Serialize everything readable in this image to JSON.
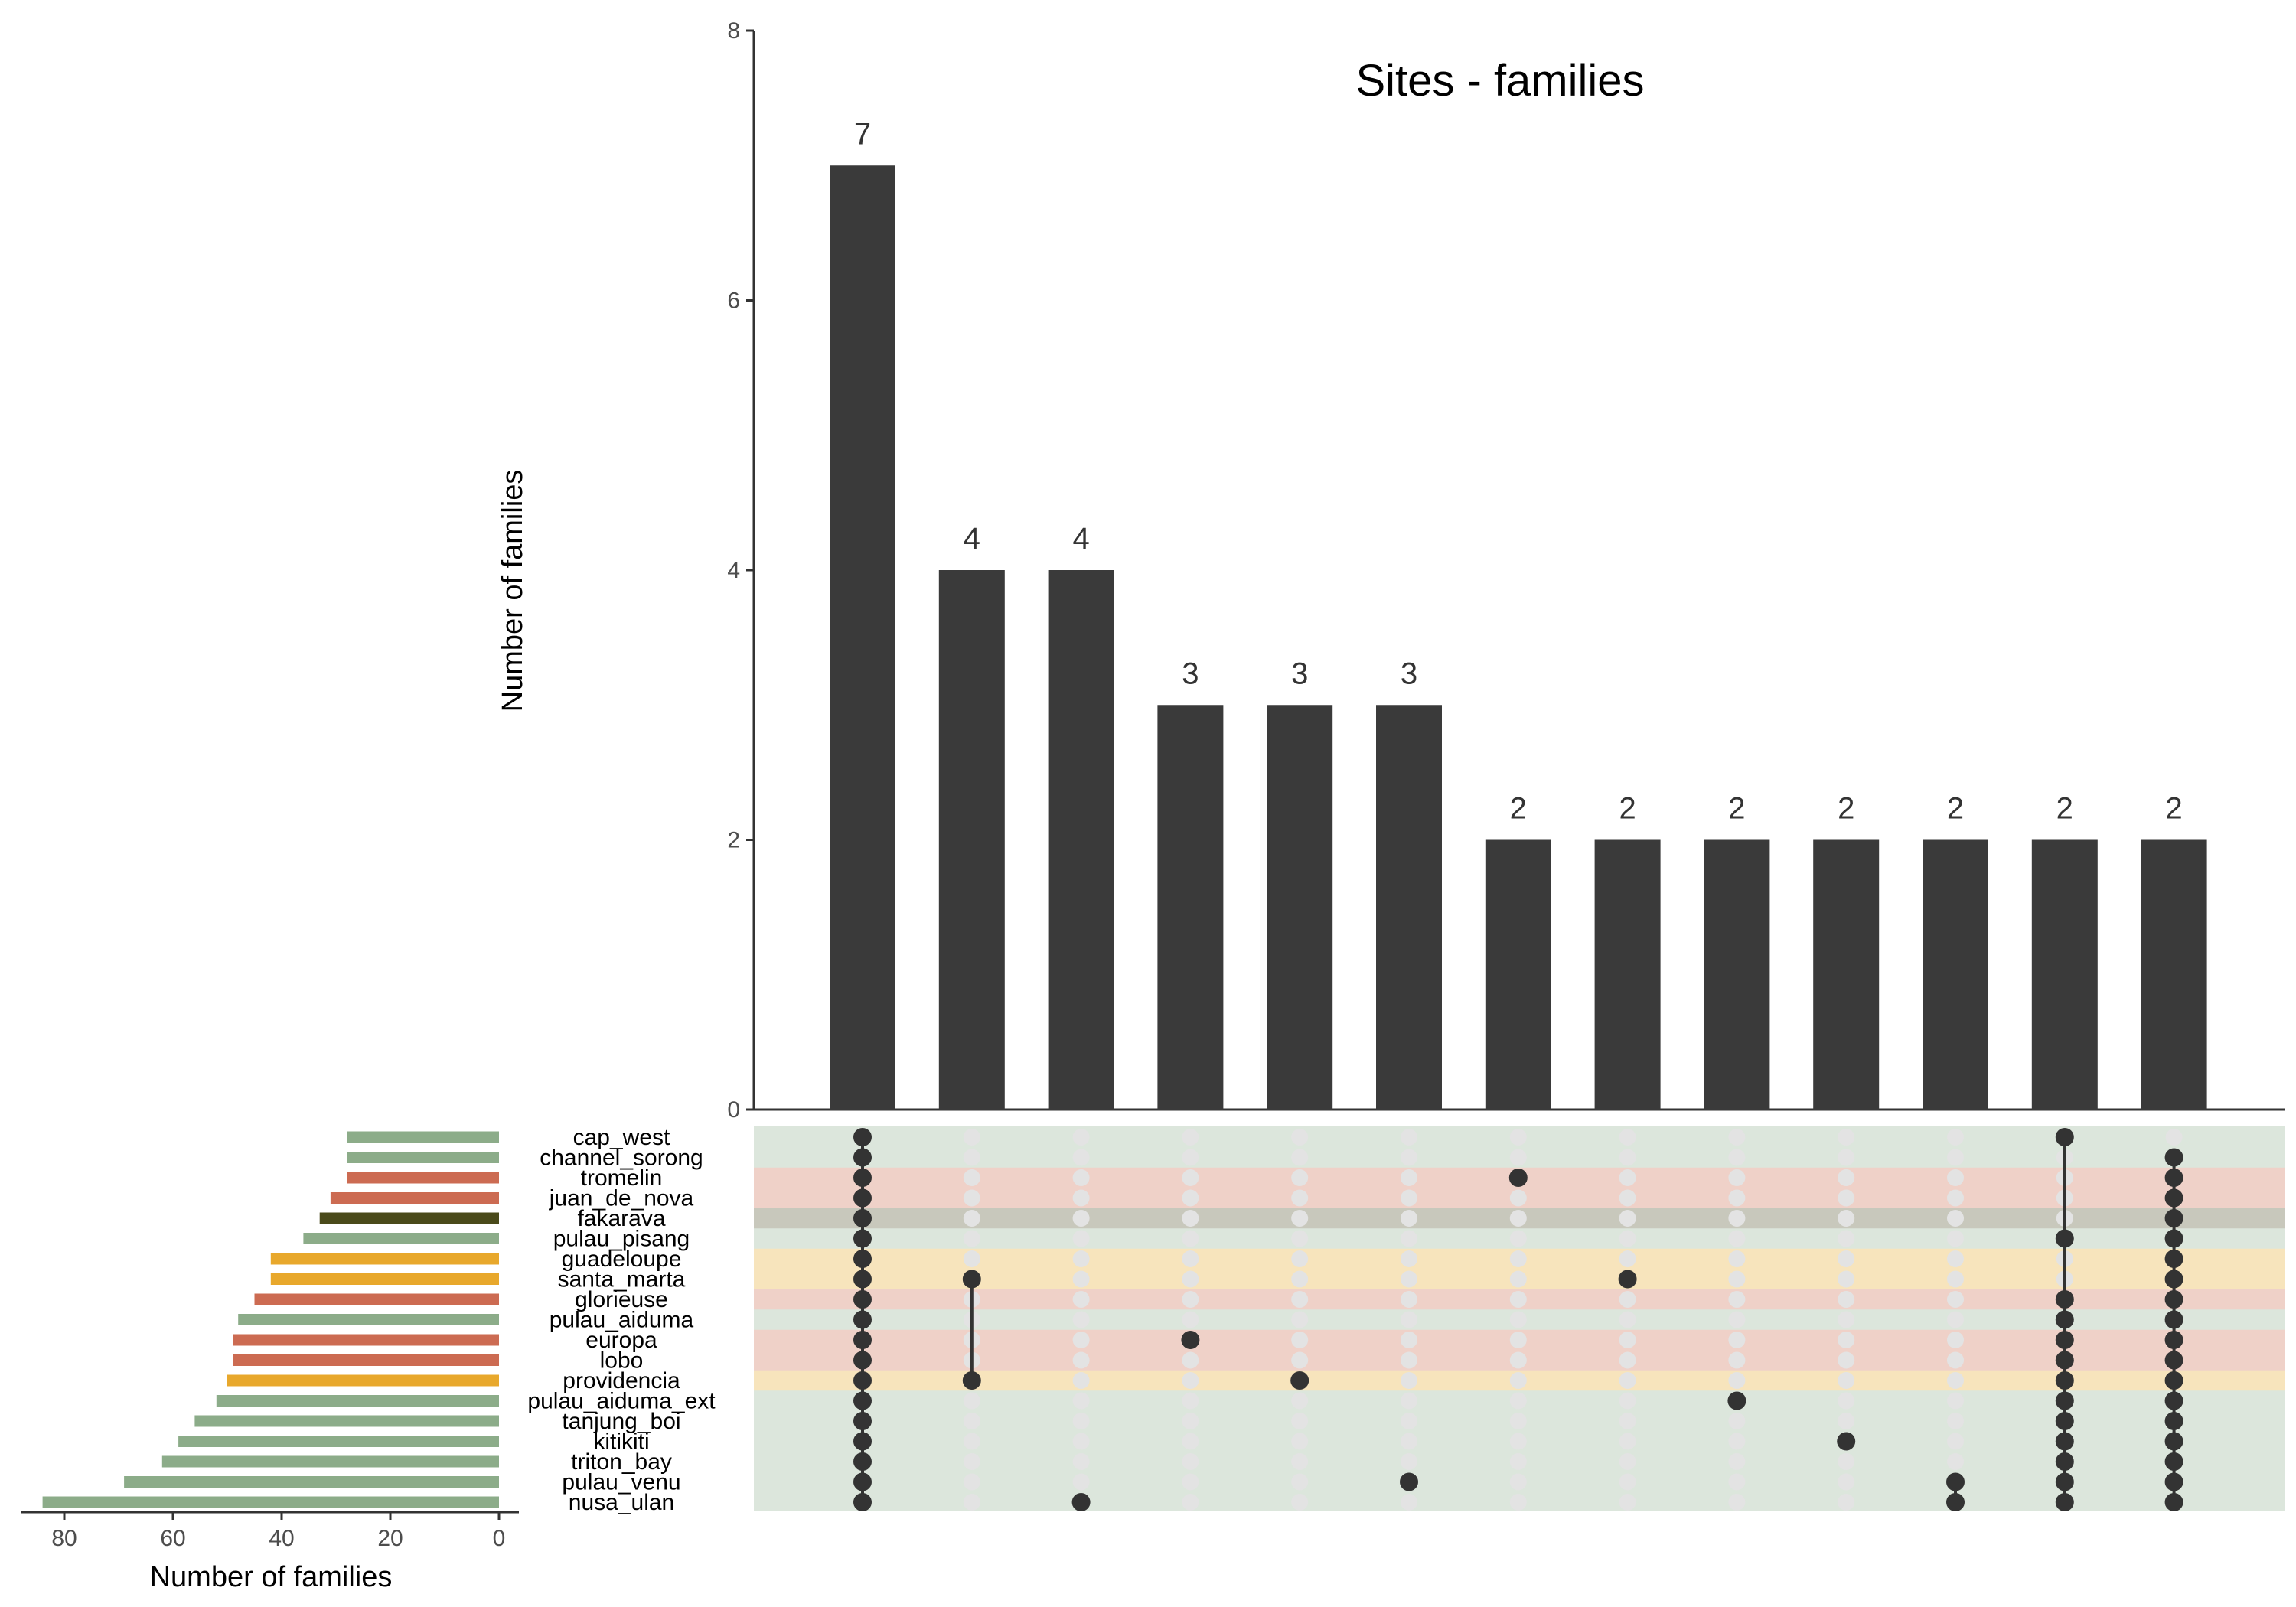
{
  "chart_data": {
    "type": "upset",
    "title": "Sites - families",
    "intersection_axis": {
      "label": "Number of families",
      "ylim": [
        0,
        8
      ],
      "ticks": [
        0,
        2,
        4,
        6,
        8
      ]
    },
    "set_size_axis": {
      "label": "Number of families",
      "xlim": [
        0,
        88
      ],
      "ticks": [
        80,
        60,
        40,
        20,
        0
      ],
      "reversed": true
    },
    "sets": [
      {
        "name": "cap_west",
        "size": 28,
        "color": "#8cac89",
        "band": "#dce6dc"
      },
      {
        "name": "channel_sorong",
        "size": 28,
        "color": "#8cac89",
        "band": "#dce6dc"
      },
      {
        "name": "tromelin",
        "size": 28,
        "color": "#cc6b52",
        "band": "#efd1c8"
      },
      {
        "name": "juan_de_nova",
        "size": 31,
        "color": "#cc6b52",
        "band": "#efd1c8"
      },
      {
        "name": "fakarava",
        "size": 33,
        "color": "#4a4a1a",
        "band": "#c8c8bc"
      },
      {
        "name": "pulau_pisang",
        "size": 36,
        "color": "#8cac89",
        "band": "#dce6dc"
      },
      {
        "name": "guadeloupe",
        "size": 42,
        "color": "#e8a82c",
        "band": "#f7e4bc"
      },
      {
        "name": "santa_marta",
        "size": 42,
        "color": "#e8a82c",
        "band": "#f7e4bc"
      },
      {
        "name": "glorieuse",
        "size": 45,
        "color": "#cc6b52",
        "band": "#efd1c8"
      },
      {
        "name": "pulau_aiduma",
        "size": 48,
        "color": "#8cac89",
        "band": "#dce6dc"
      },
      {
        "name": "europa",
        "size": 49,
        "color": "#cc6b52",
        "band": "#efd1c8"
      },
      {
        "name": "lobo",
        "size": 49,
        "color": "#cc6b52",
        "band": "#efd1c8"
      },
      {
        "name": "providencia",
        "size": 50,
        "color": "#e8a82c",
        "band": "#f7e4bc"
      },
      {
        "name": "pulau_aiduma_ext",
        "size": 52,
        "color": "#8cac89",
        "band": "#dce6dc"
      },
      {
        "name": "tanjung_boi",
        "size": 56,
        "color": "#8cac89",
        "band": "#dce6dc"
      },
      {
        "name": "kitikiti",
        "size": 59,
        "color": "#8cac89",
        "band": "#dce6dc"
      },
      {
        "name": "triton_bay",
        "size": 62,
        "color": "#8cac89",
        "band": "#dce6dc"
      },
      {
        "name": "pulau_venu",
        "size": 69,
        "color": "#8cac89",
        "band": "#dce6dc"
      },
      {
        "name": "nusa_ulan",
        "size": 84,
        "color": "#8cac89",
        "band": "#dce6dc"
      }
    ],
    "intersections": [
      {
        "size": 7,
        "sets": [
          "cap_west",
          "channel_sorong",
          "tromelin",
          "juan_de_nova",
          "fakarava",
          "pulau_pisang",
          "guadeloupe",
          "santa_marta",
          "glorieuse",
          "pulau_aiduma",
          "europa",
          "lobo",
          "providencia",
          "pulau_aiduma_ext",
          "tanjung_boi",
          "kitikiti",
          "triton_bay",
          "pulau_venu",
          "nusa_ulan"
        ]
      },
      {
        "size": 4,
        "sets": [
          "santa_marta",
          "providencia"
        ]
      },
      {
        "size": 4,
        "sets": [
          "nusa_ulan"
        ]
      },
      {
        "size": 3,
        "sets": [
          "europa"
        ]
      },
      {
        "size": 3,
        "sets": [
          "providencia"
        ]
      },
      {
        "size": 3,
        "sets": [
          "pulau_venu"
        ]
      },
      {
        "size": 2,
        "sets": [
          "tromelin"
        ]
      },
      {
        "size": 2,
        "sets": [
          "santa_marta"
        ]
      },
      {
        "size": 2,
        "sets": [
          "pulau_aiduma_ext"
        ]
      },
      {
        "size": 2,
        "sets": [
          "kitikiti"
        ]
      },
      {
        "size": 2,
        "sets": [
          "pulau_venu",
          "nusa_ulan"
        ]
      },
      {
        "size": 2,
        "sets": [
          "cap_west",
          "pulau_pisang",
          "glorieuse",
          "pulau_aiduma",
          "europa",
          "lobo",
          "providencia",
          "pulau_aiduma_ext",
          "tanjung_boi",
          "kitikiti",
          "triton_bay",
          "pulau_venu",
          "nusa_ulan"
        ]
      },
      {
        "size": 2,
        "sets": [
          "channel_sorong",
          "tromelin",
          "juan_de_nova",
          "fakarava",
          "pulau_pisang",
          "guadeloupe",
          "santa_marta",
          "glorieuse",
          "pulau_aiduma",
          "europa",
          "lobo",
          "providencia",
          "pulau_aiduma_ext",
          "tanjung_boi",
          "kitikiti",
          "triton_bay",
          "pulau_venu",
          "nusa_ulan"
        ]
      }
    ],
    "colors": {
      "bar": "#3a3a3a",
      "dot_active": "#333333",
      "dot_inactive": "#e3e3e3",
      "axis": "#333333"
    },
    "grid": false
  }
}
